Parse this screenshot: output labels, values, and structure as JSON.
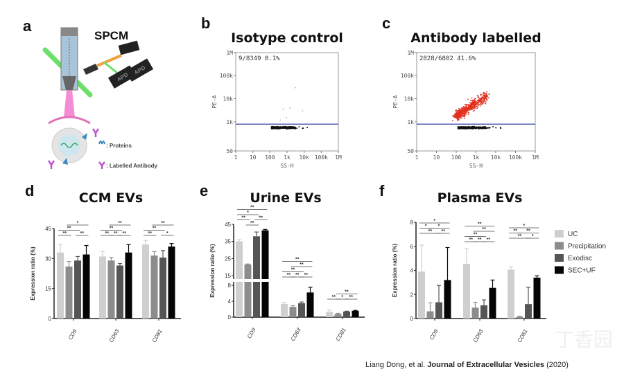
{
  "panel_a": {
    "letter": "a",
    "title": "SPCM",
    "detector_labels": [
      "APD",
      "APD"
    ],
    "legend": [
      ": Proteins",
      ": Labelled Antibody"
    ]
  },
  "chart_data": [
    {
      "type": "scatter",
      "panel": "b",
      "title": "Isotype control",
      "xlabel": "SS-H",
      "ylabel": "PE-A",
      "x_ticks": [
        "1",
        "10",
        "100",
        "1k",
        "10k",
        "100k",
        "1M"
      ],
      "y_ticks": [
        "50",
        "1k",
        "10k",
        "100k",
        "1M"
      ],
      "x_scale": "log",
      "xlim": [
        1,
        1000000
      ],
      "y_scale": "log",
      "ylim": [
        50,
        1000000
      ],
      "gate_threshold": 800,
      "gate_text": "9/8349  0.1%",
      "positive_events": 9,
      "total_events": 8349,
      "positive_percent": 0.1
    },
    {
      "type": "scatter",
      "panel": "c",
      "title": "Antibody labelled",
      "xlabel": "SS-H",
      "ylabel": "PE-A",
      "x_ticks": [
        "1",
        "10",
        "100",
        "1k",
        "10k",
        "100k",
        "1M"
      ],
      "y_ticks": [
        "50",
        "1k",
        "10k",
        "100k",
        "1M"
      ],
      "x_scale": "log",
      "xlim": [
        1,
        1000000
      ],
      "y_scale": "log",
      "ylim": [
        50,
        1000000
      ],
      "gate_threshold": 800,
      "gate_text": "2828/6802  41.6%",
      "positive_events": 2828,
      "total_events": 6802,
      "positive_percent": 41.6,
      "positive_color": "#e0301e"
    },
    {
      "type": "bar",
      "panel": "d",
      "title": "CCM EVs",
      "ylabel": "Expression ratio (%)",
      "categories": [
        "CD9",
        "CD63",
        "CD81"
      ],
      "y_ticks": [
        "0",
        "15",
        "30",
        "45"
      ],
      "ylim": [
        0,
        45
      ],
      "series": [
        {
          "name": "UC",
          "values": [
            33,
            31,
            37
          ],
          "errors": [
            4,
            2.5,
            2
          ]
        },
        {
          "name": "Precipitation",
          "values": [
            26,
            29,
            31.5
          ],
          "errors": [
            2.5,
            1.5,
            2
          ]
        },
        {
          "name": "Exodisc",
          "values": [
            29,
            26.5,
            30.5
          ],
          "errors": [
            2,
            1,
            3.5
          ]
        },
        {
          "name": "SEC+UF",
          "values": [
            32,
            33,
            36
          ],
          "errors": [
            4.5,
            4,
            1.5
          ]
        }
      ],
      "significance": [
        [
          [
            0,
            1,
            "**",
            0
          ],
          [
            2,
            3,
            "**",
            0
          ],
          [
            0,
            2,
            "**",
            1
          ],
          [
            1,
            3,
            "*",
            2
          ]
        ],
        [
          [
            0,
            1,
            "**",
            0
          ],
          [
            1,
            2,
            "**",
            0
          ],
          [
            2,
            3,
            "**",
            0
          ],
          [
            0,
            2,
            "**",
            1
          ],
          [
            1,
            3,
            "**",
            2
          ]
        ],
        [
          [
            0,
            1,
            "**",
            0
          ],
          [
            2,
            3,
            "*",
            0
          ],
          [
            0,
            2,
            "**",
            1
          ],
          [
            1,
            3,
            "**",
            2
          ]
        ]
      ]
    },
    {
      "type": "bar",
      "panel": "e",
      "title": "Urine EVs",
      "ylabel": "Expression ratio (%)",
      "categories": [
        "CD9",
        "CD63",
        "CD81"
      ],
      "y_ticks": [
        "0",
        "4",
        "8",
        "15",
        "25",
        "35",
        "45"
      ],
      "ylim": [
        0,
        45
      ],
      "axis_break": [
        8,
        15
      ],
      "series": [
        {
          "name": "UC",
          "values": [
            35,
            3.3,
            1.3
          ],
          "errors": [
            1,
            0.4,
            0.5
          ]
        },
        {
          "name": "Precipitation",
          "values": [
            21.5,
            2.6,
            0.8
          ],
          "errors": [
            0.3,
            0.3,
            0.15
          ]
        },
        {
          "name": "Exodisc",
          "values": [
            38,
            3.5,
            1.4
          ],
          "errors": [
            2.5,
            0.3,
            0.1
          ]
        },
        {
          "name": "SEC+UF",
          "values": [
            41.5,
            6.2,
            1.6
          ],
          "errors": [
            0.5,
            1.3,
            0.1
          ]
        }
      ],
      "significance": [
        [
          [
            1,
            2,
            "**",
            0
          ],
          [
            0,
            1,
            "**",
            1
          ],
          [
            2,
            3,
            "**",
            1
          ],
          [
            0,
            2,
            "*",
            2
          ],
          [
            0,
            3,
            "**",
            3
          ]
        ],
        [
          [
            0,
            1,
            "**",
            0
          ],
          [
            1,
            2,
            "**",
            0
          ],
          [
            2,
            3,
            "**",
            0
          ],
          [
            0,
            2,
            "**",
            1
          ],
          [
            1,
            3,
            "**",
            2
          ],
          [
            0,
            3,
            "**",
            3
          ]
        ],
        [
          [
            0,
            1,
            "**",
            0
          ],
          [
            1,
            2,
            "*",
            0
          ],
          [
            2,
            3,
            "**",
            0
          ],
          [
            1,
            3,
            "**",
            1
          ]
        ]
      ]
    },
    {
      "type": "bar",
      "panel": "f",
      "title": "Plasma EVs",
      "ylabel": "Expression ratio (%)",
      "categories": [
        "CD9",
        "CD63",
        "CD81"
      ],
      "y_ticks": [
        "0",
        "2",
        "4",
        "6",
        "8"
      ],
      "ylim": [
        0,
        8
      ],
      "legend_position": "right",
      "series": [
        {
          "name": "UC",
          "values": [
            3.9,
            4.55,
            4.05
          ],
          "errors": [
            2.2,
            1.25,
            0.25
          ]
        },
        {
          "name": "Precipitation",
          "values": [
            0.6,
            0.9,
            0.15
          ],
          "errors": [
            0.7,
            0.45,
            0.05
          ]
        },
        {
          "name": "Exodisc",
          "values": [
            1.35,
            1.1,
            1.2
          ],
          "errors": [
            1.4,
            0.45,
            1.4
          ]
        },
        {
          "name": "SEC+UF",
          "values": [
            3.2,
            2.55,
            3.4
          ],
          "errors": [
            2.7,
            0.65,
            0.15
          ]
        }
      ],
      "significance": [
        [
          [
            0,
            2,
            "**",
            0
          ],
          [
            2,
            3,
            "**",
            0
          ],
          [
            0,
            1,
            "*",
            1
          ],
          [
            1,
            3,
            "*",
            1
          ],
          [
            0,
            3,
            "*",
            2
          ]
        ],
        [
          [
            0,
            1,
            "**",
            0
          ],
          [
            1,
            2,
            "**",
            0
          ],
          [
            2,
            3,
            "**",
            0
          ],
          [
            0,
            2,
            "**",
            1
          ],
          [
            1,
            3,
            "**",
            2
          ],
          [
            0,
            3,
            "**",
            3
          ]
        ],
        [
          [
            0,
            2,
            "**",
            0
          ],
          [
            2,
            3,
            "*",
            0
          ],
          [
            0,
            1,
            "**",
            1
          ],
          [
            1,
            3,
            "**",
            1
          ],
          [
            0,
            3,
            "*",
            2
          ]
        ]
      ]
    }
  ],
  "series_colors": [
    "#cfcfcf",
    "#8c8c8c",
    "#555555",
    "#050505"
  ],
  "citation": {
    "authors": "Liang Dong, et al. ",
    "journal": "Journal of Extracellular Vesicles",
    "year": " (2020)"
  },
  "watermark": "丁香园"
}
